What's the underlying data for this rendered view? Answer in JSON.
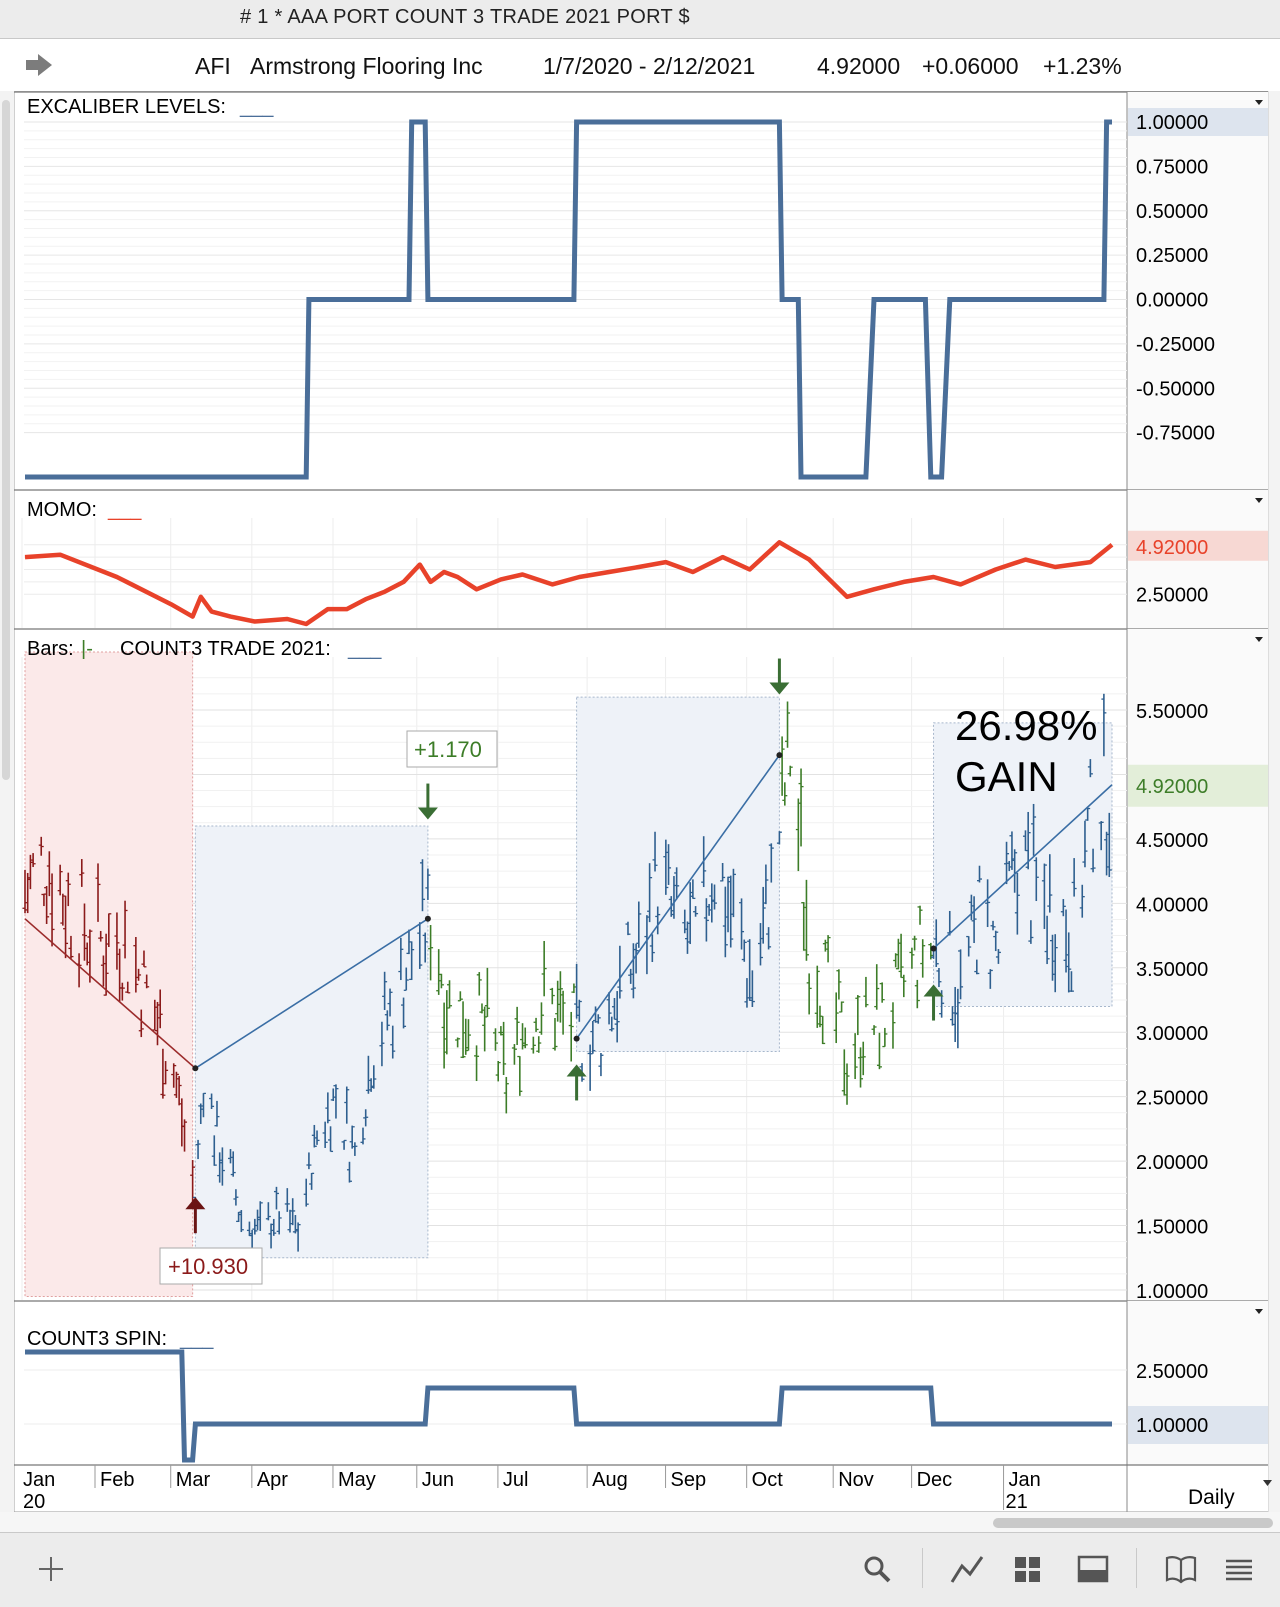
{
  "window": {
    "title": "# 1 * AAA PORT COUNT 3 TRADE 2021 PORT $"
  },
  "header": {
    "arrow_icon": "arrow-right-icon",
    "symbol": "AFI",
    "company": "Armstrong Flooring Inc",
    "date_range": "1/7/2020 - 2/12/2021",
    "last": "4.92000",
    "change": "+0.06000",
    "change_pct": "+1.23%"
  },
  "panels": {
    "excaliber": {
      "label": "EXCALIBER LEVELS:",
      "suffix": "___"
    },
    "momo": {
      "label": "MOMO:",
      "suffix": "___"
    },
    "bars": {
      "label": "Bars:",
      "bar_glyph": "|-",
      "study": "COUNT3 TRADE 2021:",
      "suffix": "___"
    },
    "spin": {
      "label": "COUNT3 SPIN:",
      "suffix": "___"
    }
  },
  "annotations": {
    "gain_big_pct": "26.98%",
    "gain_big_word": "GAIN",
    "trade1_label": "+10.930",
    "trade2_label": "+1.170"
  },
  "footer": {
    "timeframe": "Daily"
  },
  "colors": {
    "excaliber_line": "#4a6e99",
    "momo_line": "#e8422a",
    "bar_red": "#8b1a1a",
    "bar_blue": "#2e5f8f",
    "bar_green": "#3d7d28",
    "spin_line": "#4a6e99",
    "arrow_green": "#3a6e34",
    "arrow_red": "#6b1414"
  },
  "bottom_toolbar": [
    "add-icon",
    "search-icon",
    "draw-icon",
    "grid-icon",
    "panel-icon",
    "book-icon",
    "menu-icon"
  ],
  "chart_data": [
    {
      "type": "line",
      "title": "EXCALIBER LEVELS",
      "step": true,
      "y_ticks": [
        "1.00000",
        "0.75000",
        "0.50000",
        "0.25000",
        "0.00000",
        "-0.25000",
        "-0.50000",
        "-0.75000"
      ],
      "current_value": "1.00000",
      "ylim": [
        -1,
        1
      ],
      "x": [
        "2020-01-07",
        "2020-04-20",
        "2020-04-21",
        "2020-05-28",
        "2020-05-29",
        "2020-06-03",
        "2020-06-04",
        "2020-07-28",
        "2020-07-29",
        "2020-10-12",
        "2020-10-13",
        "2020-10-19",
        "2020-10-20",
        "2020-11-13",
        "2020-11-16",
        "2020-12-05",
        "2020-12-07",
        "2020-12-11",
        "2020-12-14",
        "2021-02-09",
        "2021-02-10",
        "2021-02-12"
      ],
      "values": [
        -1,
        -1,
        0,
        0,
        1,
        1,
        0,
        0,
        1,
        1,
        0,
        0,
        -1,
        -1,
        0,
        0,
        -1,
        -1,
        0,
        0,
        1,
        1
      ]
    },
    {
      "type": "line",
      "title": "MOMO",
      "y_ticks": [
        "2.50000"
      ],
      "current_value": "4.92000",
      "ylim": [
        1.3,
        5.5
      ],
      "x": [
        "2020-01-07",
        "2020-01-20",
        "2020-02-10",
        "2020-03-01",
        "2020-03-09",
        "2020-03-12",
        "2020-03-16",
        "2020-03-23",
        "2020-04-01",
        "2020-04-13",
        "2020-04-20",
        "2020-04-28",
        "2020-05-05",
        "2020-05-12",
        "2020-05-19",
        "2020-05-26",
        "2020-06-01",
        "2020-06-05",
        "2020-06-10",
        "2020-06-15",
        "2020-06-22",
        "2020-07-01",
        "2020-07-09",
        "2020-07-20",
        "2020-07-30",
        "2020-08-10",
        "2020-08-21",
        "2020-08-31",
        "2020-09-10",
        "2020-09-21",
        "2020-10-01",
        "2020-10-12",
        "2020-10-23",
        "2020-11-06",
        "2020-11-16",
        "2020-11-27",
        "2020-12-08",
        "2020-12-18",
        "2020-12-31",
        "2021-01-11",
        "2021-01-22",
        "2021-02-04",
        "2021-02-12"
      ],
      "values": [
        4.0,
        4.1,
        3.2,
        2.1,
        1.6,
        2.4,
        1.8,
        1.6,
        1.4,
        1.5,
        1.3,
        1.9,
        1.9,
        2.3,
        2.6,
        3.0,
        3.7,
        3.0,
        3.4,
        3.2,
        2.7,
        3.1,
        3.3,
        2.9,
        3.2,
        3.4,
        3.6,
        3.8,
        3.4,
        4.0,
        3.5,
        4.6,
        3.9,
        2.4,
        2.7,
        3.0,
        3.2,
        2.9,
        3.5,
        3.9,
        3.6,
        3.8,
        4.5
      ]
    },
    {
      "type": "bar",
      "title": "Bars / COUNT3 TRADE 2021",
      "ohlc": true,
      "y_ticks": [
        "5.50000",
        "4.92000",
        "4.50000",
        "4.00000",
        "3.50000",
        "3.00000",
        "2.50000",
        "2.00000",
        "1.50000",
        "1.00000"
      ],
      "current_value": "4.92000",
      "ylim": [
        1.0,
        5.9
      ],
      "x_labels": [
        "Jan",
        "Feb",
        "Mar",
        "Apr",
        "May",
        "Jun",
        "Jul",
        "Aug",
        "Sep",
        "Oct",
        "Nov",
        "Dec",
        "Jan"
      ],
      "year_labels": [
        "20",
        "21"
      ],
      "x": [
        "2020-01-07",
        "2020-01-15",
        "2020-01-22",
        "2020-01-28",
        "2020-02-04",
        "2020-02-11",
        "2020-02-18",
        "2020-02-25",
        "2020-03-02",
        "2020-03-06",
        "2020-03-10",
        "2020-03-13",
        "2020-03-18",
        "2020-03-23",
        "2020-03-27",
        "2020-04-03",
        "2020-04-10",
        "2020-04-17",
        "2020-04-24",
        "2020-05-01",
        "2020-05-08",
        "2020-05-15",
        "2020-05-22",
        "2020-05-29",
        "2020-06-05",
        "2020-06-12",
        "2020-06-19",
        "2020-06-26",
        "2020-07-03",
        "2020-07-10",
        "2020-07-17",
        "2020-07-24",
        "2020-07-31",
        "2020-08-07",
        "2020-08-14",
        "2020-08-21",
        "2020-08-28",
        "2020-09-04",
        "2020-09-11",
        "2020-09-18",
        "2020-09-25",
        "2020-10-02",
        "2020-10-09",
        "2020-10-16",
        "2020-10-23",
        "2020-10-30",
        "2020-11-06",
        "2020-11-13",
        "2020-11-20",
        "2020-11-27",
        "2020-12-04",
        "2020-12-11",
        "2020-12-18",
        "2020-12-25",
        "2021-01-01",
        "2021-01-08",
        "2021-01-15",
        "2021-01-22",
        "2021-01-29",
        "2021-02-05",
        "2021-02-12"
      ],
      "close": [
        4.1,
        4.35,
        4.05,
        3.85,
        3.7,
        3.75,
        3.45,
        3.1,
        2.7,
        2.2,
        1.7,
        2.7,
        2.15,
        1.9,
        1.55,
        1.45,
        1.6,
        1.45,
        2.2,
        2.5,
        2.05,
        2.9,
        3.2,
        3.6,
        3.9,
        3.2,
        3.15,
        3.0,
        2.6,
        3.05,
        3.25,
        3.1,
        2.95,
        3.0,
        3.35,
        3.6,
        4.2,
        3.8,
        3.7,
        4.3,
        3.9,
        3.4,
        4.1,
        5.2,
        3.7,
        3.3,
        2.8,
        3.05,
        3.1,
        3.35,
        3.65,
        3.6,
        3.3,
        3.9,
        3.6,
        4.4,
        4.05,
        3.95,
        3.8,
        4.8,
        4.92
      ],
      "segments": [
        {
          "color": "red",
          "from": "2020-01-07",
          "to": "2020-03-09"
        },
        {
          "color": "blue",
          "from": "2020-03-10",
          "to": "2020-06-04"
        },
        {
          "color": "green",
          "from": "2020-06-05",
          "to": "2020-07-28"
        },
        {
          "color": "blue",
          "from": "2020-07-29",
          "to": "2020-10-12"
        },
        {
          "color": "green",
          "from": "2020-10-13",
          "to": "2020-12-07"
        },
        {
          "color": "blue",
          "from": "2020-12-08",
          "to": "2021-02-12"
        }
      ],
      "annotations": [
        "+10.930",
        "+1.170",
        "26.98% GAIN"
      ]
    },
    {
      "type": "line",
      "title": "COUNT3 SPIN",
      "step": true,
      "y_ticks": [
        "2.50000",
        "1.00000"
      ],
      "current_value": "1.00000",
      "ylim": [
        0,
        3.5
      ],
      "x": [
        "2020-01-07",
        "2020-03-05",
        "2020-03-06",
        "2020-03-09",
        "2020-03-10",
        "2020-06-03",
        "2020-06-04",
        "2020-07-28",
        "2020-07-29",
        "2020-10-12",
        "2020-10-13",
        "2020-12-07",
        "2020-12-08",
        "2021-02-12"
      ],
      "values": [
        3,
        3,
        0,
        0,
        1,
        1,
        2,
        2,
        1,
        1,
        2,
        2,
        1,
        1
      ]
    }
  ]
}
